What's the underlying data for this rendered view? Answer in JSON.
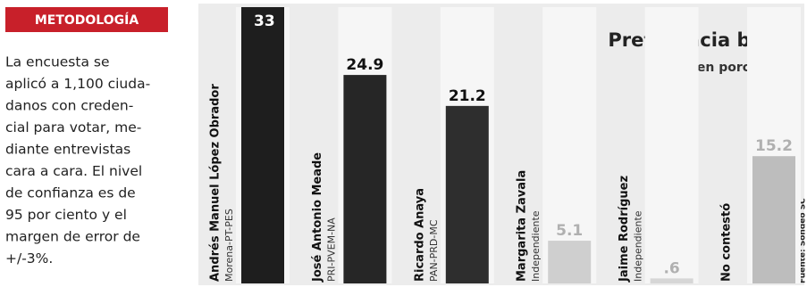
{
  "sidebar": {
    "heading": "METODOLOGÍA",
    "lines": [
      "La encuesta se",
      "aplicó a 1,100 ciuda-",
      "danos con creden-",
      "cial para votar, me-",
      "diante entrevistas",
      "cara a cara. El nivel",
      "de confianza es de",
      "95 por ciento y el",
      "margen de error de",
      "+/-3%."
    ]
  },
  "chart_data": {
    "type": "bar",
    "title": "Preferencia bruta",
    "subtitle": "Cifras en porcentaje",
    "categories": [
      "Andrés Manuel López Obrador",
      "José Antonio Meade",
      "Ricardo Anaya",
      "Margarita Zavala",
      "Jaime Rodríguez",
      "No contestó"
    ],
    "parties": [
      "Morena-PT-PES",
      "PRI-PVEM-NA",
      "PAN-PRD-MC",
      "Independiente",
      "Independiente",
      null
    ],
    "values": [
      33,
      24.9,
      21.2,
      5.1,
      0.6,
      15.2
    ],
    "value_labels": [
      "33",
      "24.9",
      "21.2",
      "5.1",
      ".6",
      "15.2"
    ],
    "colors": [
      "#1e1e1e",
      "#262626",
      "#2e2e2e",
      "#cfcfcf",
      "#d6d6d6",
      "#bdbdbd"
    ],
    "source": "Fuente: Sondeo SC"
  }
}
